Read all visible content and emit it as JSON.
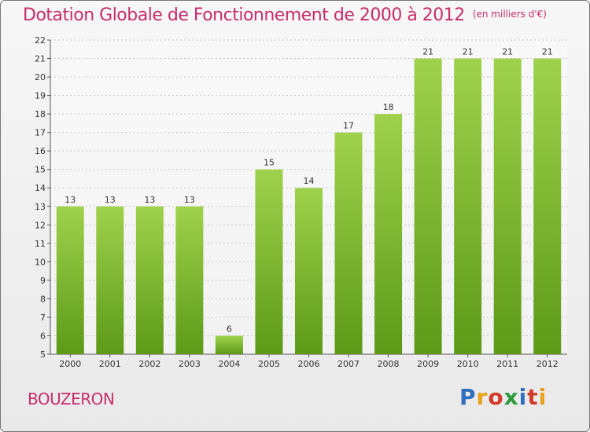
{
  "header": {
    "title": "Dotation Globale de Fonctionnement de 2000 à 2012",
    "subtitle": "(en milliers d'€)"
  },
  "footer": {
    "commune": "BOUZERON",
    "logo_text": "Proxiti"
  },
  "chart_data": {
    "type": "bar",
    "title": "Dotation Globale de Fonctionnement de 2000 à 2012",
    "subtitle": "(en milliers d'€)",
    "categories": [
      "2000",
      "2001",
      "2002",
      "2003",
      "2004",
      "2005",
      "2006",
      "2007",
      "2008",
      "2009",
      "2010",
      "2011",
      "2012"
    ],
    "values": [
      13,
      13,
      13,
      13,
      6,
      15,
      14,
      17,
      18,
      21,
      21,
      21,
      21
    ],
    "ylim": [
      5,
      22
    ],
    "yticks": [
      5,
      6,
      7,
      8,
      9,
      10,
      11,
      12,
      13,
      14,
      15,
      16,
      17,
      18,
      19,
      20,
      21,
      22
    ],
    "grid": true,
    "xlabel": "",
    "ylabel": "",
    "colors": {
      "bar_top": "#9fd24c",
      "bar_bottom": "#5c9a18",
      "grid": "#c8c8c8",
      "text": "#333333",
      "accent": "#c62d6a"
    }
  }
}
